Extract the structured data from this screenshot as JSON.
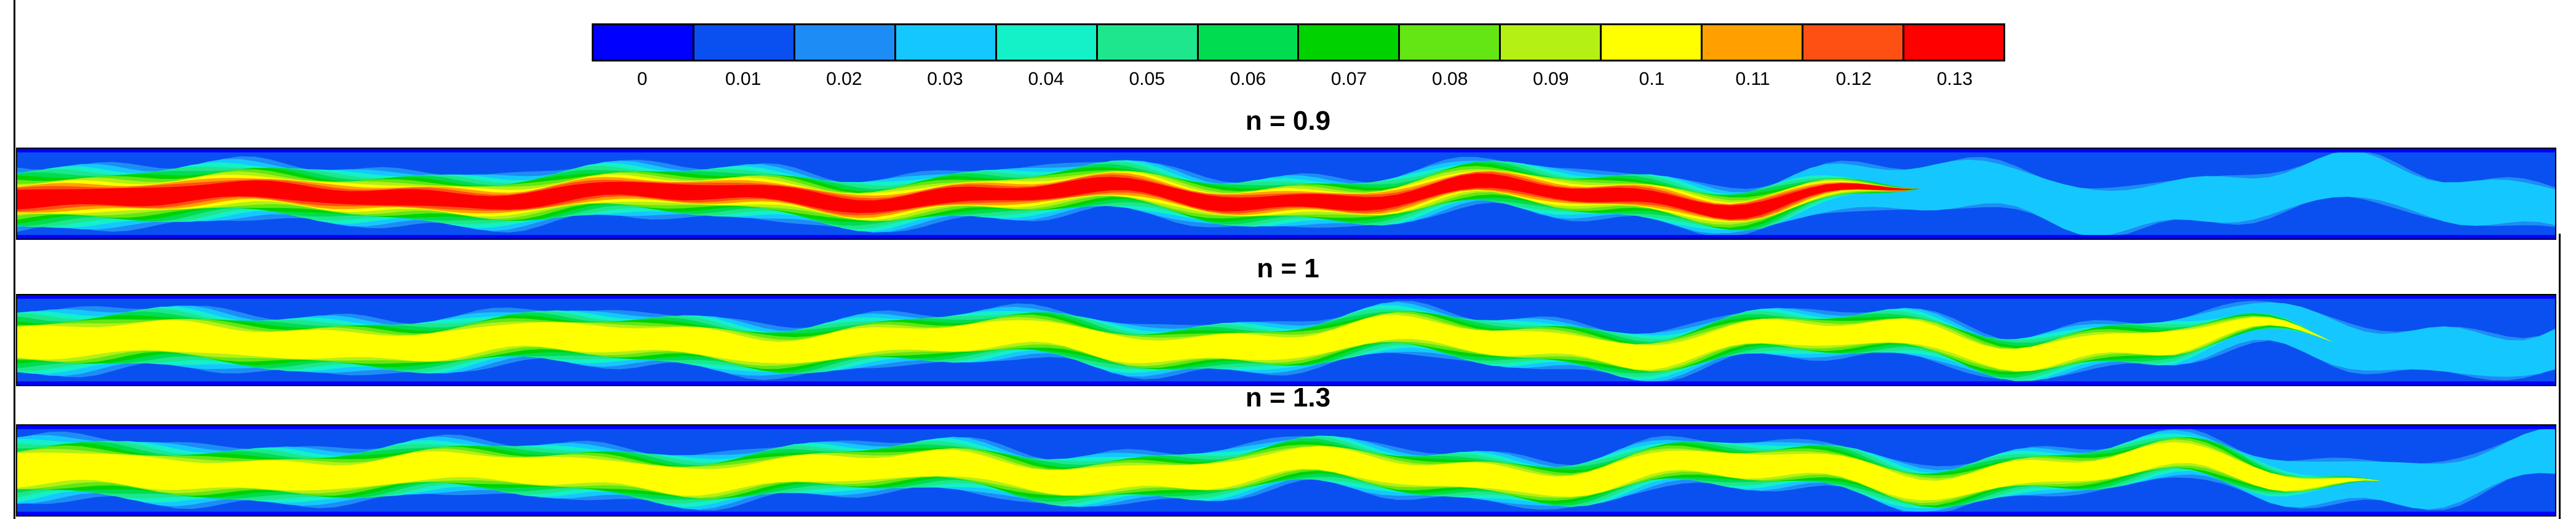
{
  "chart_data": {
    "type": "heatmap",
    "colorbar": {
      "ticks": [
        "0",
        "0.01",
        "0.02",
        "0.03",
        "0.04",
        "0.05",
        "0.06",
        "0.07",
        "0.08",
        "0.09",
        "0.1",
        "0.11",
        "0.12",
        "0.13"
      ],
      "colors": [
        "#0000ff",
        "#0a50f0",
        "#1e8cf5",
        "#14c8ff",
        "#14f0c8",
        "#1ee68c",
        "#00dc50",
        "#00d200",
        "#64e614",
        "#b4f014",
        "#ffff00",
        "#ffa000",
        "#ff5014",
        "#ff0000"
      ]
    },
    "panels": [
      {
        "title": "n = 0.9",
        "jet_extent": 0.69,
        "peak_level": 13
      },
      {
        "title": "n = 1",
        "jet_extent": 0.85,
        "peak_level": 10
      },
      {
        "title": "n = 1.3",
        "jet_extent": 0.87,
        "peak_level": 10
      }
    ]
  }
}
